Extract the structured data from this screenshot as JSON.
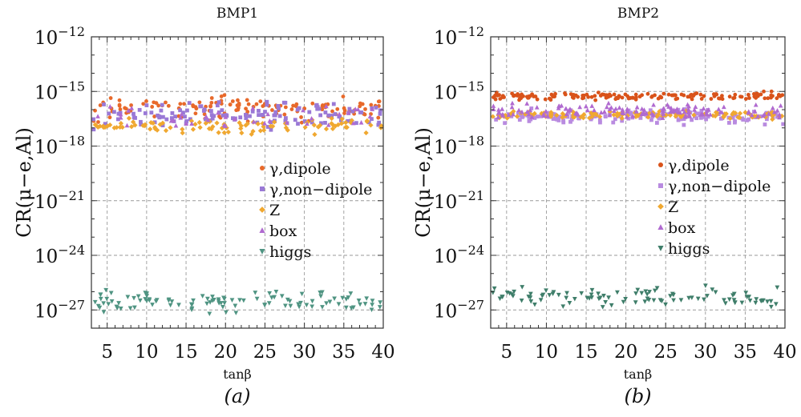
{
  "chart_data": [
    {
      "type": "scatter",
      "title": "BMP1",
      "xlabel": "tanβ",
      "ylabel": "CR(μ−e,Al)",
      "caption": "(a)",
      "xlim": [
        3,
        40
      ],
      "ylim_log10": [
        -28,
        -12
      ],
      "y_scale": "log",
      "grid": true,
      "x_ticks": [
        5,
        10,
        15,
        20,
        25,
        30,
        35,
        40
      ],
      "y_ticks": [
        {
          "exp": -12,
          "label": "−12"
        },
        {
          "exp": -15,
          "label": "−15"
        },
        {
          "exp": -18,
          "label": "−18"
        },
        {
          "exp": -21,
          "label": "−21"
        },
        {
          "exp": -24,
          "label": "−24"
        },
        {
          "exp": -27,
          "label": "−27"
        }
      ],
      "legend_position": "center-left",
      "series": [
        {
          "name": "γ,dipole",
          "color": "#e8692a",
          "marker": "circle",
          "n_points": 130,
          "log10_center": -15.9,
          "log10_spread": 0.55
        },
        {
          "name": "γ,non−dipole",
          "color": "#9a79d6",
          "marker": "square",
          "n_points": 130,
          "log10_center": -16.3,
          "log10_spread": 0.6
        },
        {
          "name": "Z",
          "color": "#f0a830",
          "marker": "diamond",
          "n_points": 100,
          "log10_center": -16.9,
          "log10_spread": 0.35
        },
        {
          "name": "box",
          "color": "#b06ad0",
          "marker": "triangle-up",
          "n_points": 40,
          "log10_center": -16.4,
          "log10_spread": 0.5
        },
        {
          "name": "higgs",
          "color": "#4f9482",
          "marker": "triangle-down",
          "n_points": 110,
          "log10_center": -26.5,
          "log10_spread": 0.55
        }
      ]
    },
    {
      "type": "scatter",
      "title": "BMP2",
      "xlabel": "tanβ",
      "ylabel": "CR(μ−e,Al)",
      "caption": "(b)",
      "xlim": [
        3,
        40
      ],
      "ylim_log10": [
        -28,
        -12
      ],
      "y_scale": "log",
      "grid": true,
      "x_ticks": [
        5,
        10,
        15,
        20,
        25,
        30,
        35,
        40
      ],
      "y_ticks": [
        {
          "exp": -12,
          "label": "−12"
        },
        {
          "exp": -15,
          "label": "−15"
        },
        {
          "exp": -18,
          "label": "−18"
        },
        {
          "exp": -21,
          "label": "−21"
        },
        {
          "exp": -24,
          "label": "−24"
        },
        {
          "exp": -27,
          "label": "−27"
        }
      ],
      "legend_position": "center-right",
      "series": [
        {
          "name": "γ,dipole",
          "color": "#d9531a",
          "marker": "circle",
          "n_points": 150,
          "log10_center": -15.25,
          "log10_spread": 0.18
        },
        {
          "name": "γ,non−dipole",
          "color": "#b98be0",
          "marker": "square",
          "n_points": 150,
          "log10_center": -16.4,
          "log10_spread": 0.35
        },
        {
          "name": "Z",
          "color": "#f0a830",
          "marker": "diamond",
          "n_points": 120,
          "log10_center": -16.3,
          "log10_spread": 0.2
        },
        {
          "name": "box",
          "color": "#b06ad0",
          "marker": "triangle-up",
          "n_points": 130,
          "log10_center": -16.1,
          "log10_spread": 0.35
        },
        {
          "name": "higgs",
          "color": "#3f7e6a",
          "marker": "triangle-down",
          "n_points": 100,
          "log10_center": -26.3,
          "log10_spread": 0.45
        }
      ]
    }
  ]
}
